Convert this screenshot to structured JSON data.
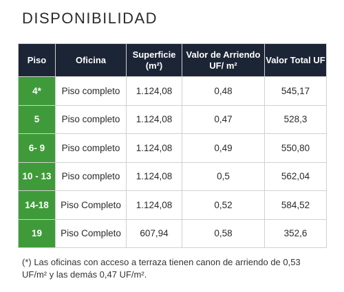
{
  "title": "DISPONIBILIDAD",
  "table": {
    "header": [
      [
        "Piso"
      ],
      [
        "Oficina"
      ],
      [
        "Superficie",
        "(m²)"
      ],
      [
        "Valor de Arriendo",
        "UF/ m²"
      ],
      [
        "Valor Total UF"
      ]
    ],
    "rows": [
      [
        "4*",
        "Piso completo",
        "1.124,08",
        "0,48",
        "545,17"
      ],
      [
        "5",
        "Piso completo",
        "1.124,08",
        "0,47",
        "528,3"
      ],
      [
        "6- 9",
        "Piso completo",
        "1.124,08",
        "0,49",
        "550,80"
      ],
      [
        "10 - 13",
        "Piso completo",
        "1.124,08",
        "0,5",
        "562,04"
      ],
      [
        "14-18",
        "Piso Completo",
        "1.124,08",
        "0,52",
        "584,52"
      ],
      [
        "19",
        "Piso Completo",
        "607,94",
        "0,58",
        "352,6"
      ]
    ]
  },
  "footnote": "(*) Las oficinas con acceso a terraza tienen canon de arriendo de 0,53 UF/m² y las demás 0,47 UF/m²."
}
